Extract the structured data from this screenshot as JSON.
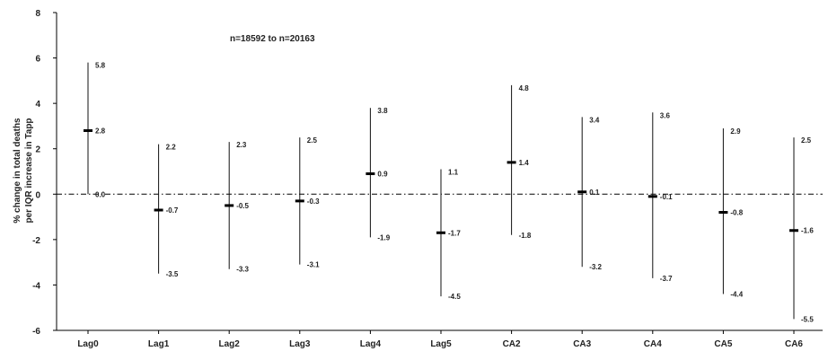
{
  "chart_data": {
    "type": "errorbar",
    "title": "",
    "annotation": "n=18592 to n=20163",
    "xlabel": "",
    "ylabel": "% change in total deaths per IQR increase in Tapp",
    "ylabel_lines": [
      "% change in total deaths",
      "per IQR increase in Tapp"
    ],
    "ylim": [
      -6,
      8
    ],
    "yticks": [
      8,
      6,
      4,
      2,
      0,
      -2,
      -4,
      -6
    ],
    "ytick_labels": [
      "8",
      "6",
      "4",
      "2",
      "0",
      "-2",
      "-4",
      "-6"
    ],
    "reference_line": 0,
    "categories": [
      "Lag0",
      "Lag1",
      "Lag2",
      "Lag3",
      "Lag4",
      "Lag5",
      "CA2",
      "CA3",
      "CA4",
      "CA5",
      "CA6"
    ],
    "estimates": [
      2.8,
      -0.7,
      -0.5,
      -0.3,
      0.9,
      -1.7,
      1.4,
      0.1,
      -0.1,
      -0.8,
      -1.6
    ],
    "upper": [
      5.8,
      2.2,
      2.3,
      2.5,
      3.8,
      1.1,
      4.8,
      3.4,
      3.6,
      2.9,
      2.5
    ],
    "lower": [
      0.0,
      -3.5,
      -3.3,
      -3.1,
      -1.9,
      -4.5,
      -1.8,
      -3.2,
      -3.7,
      -4.4,
      -5.5
    ],
    "estimate_labels": [
      "2.8",
      "-0.7",
      "-0.5",
      "-0.3",
      "0.9",
      "-1.7",
      "1.4",
      "0.1",
      "-0.1",
      "-0.8",
      "-1.6"
    ],
    "upper_labels": [
      "5.8",
      "2.2",
      "2.3",
      "2.5",
      "3.8",
      "1.1",
      "4.8",
      "3.4",
      "3.6",
      "2.9",
      "2.5"
    ],
    "lower_labels": [
      "0.0",
      "-3.5",
      "-3.3",
      "-3.1",
      "-1.9",
      "-4.5",
      "-1.8",
      "-3.2",
      "-3.7",
      "-4.4",
      "-5.5"
    ]
  }
}
